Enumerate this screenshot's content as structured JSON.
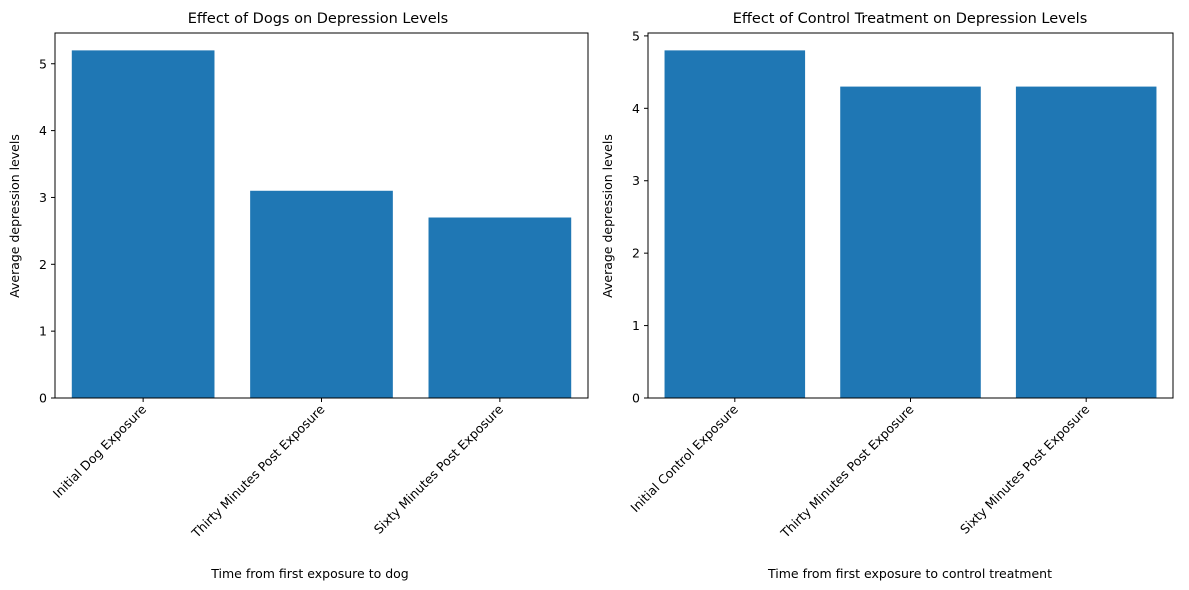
{
  "chart_data": [
    {
      "type": "bar",
      "title": "Effect of Dogs on Depression Levels",
      "xlabel": "Time from first exposure to dog",
      "ylabel": "Average depression levels",
      "categories": [
        "Initial Dog Exposure",
        "Thirty Minutes Post Exposure",
        "Sixty Minutes Post Exposure"
      ],
      "values": [
        5.2,
        3.1,
        2.7
      ],
      "ylim": [
        0,
        5.46
      ],
      "yticks": [
        0,
        1,
        2,
        3,
        4,
        5
      ],
      "grid": false,
      "bar_color": "#1f77b4"
    },
    {
      "type": "bar",
      "title": "Effect of Control Treatment on Depression Levels",
      "xlabel": "Time from first exposure to control treatment",
      "ylabel": "Average depression levels",
      "categories": [
        "Initial Control Exposure",
        "Thirty Minutes Post Exposure",
        "Sixty Minutes Post Exposure"
      ],
      "values": [
        4.8,
        4.3,
        4.3
      ],
      "ylim": [
        0,
        5.04
      ],
      "yticks": [
        0,
        1,
        2,
        3,
        4,
        5
      ],
      "grid": false,
      "bar_color": "#1f77b4"
    }
  ]
}
